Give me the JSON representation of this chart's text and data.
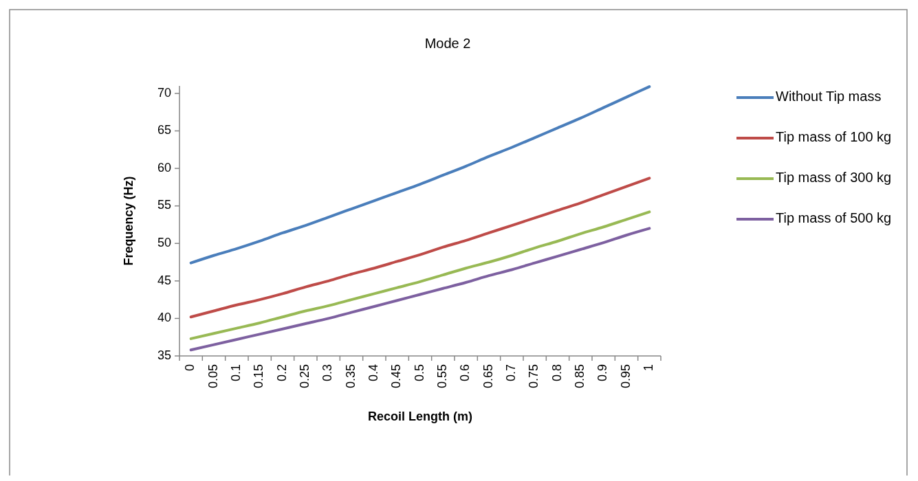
{
  "chart_data": {
    "type": "line",
    "title": "Mode 2",
    "xlabel": "Recoil Length (m)",
    "ylabel": "Frequency (Hz)",
    "categories": [
      "0",
      "0.05",
      "0.1",
      "0.15",
      "0.2",
      "0.25",
      "0.3",
      "0.35",
      "0.4",
      "0.45",
      "0.5",
      "0.55",
      "0.6",
      "0.65",
      "0.7",
      "0.75",
      "0.8",
      "0.85",
      "0.9",
      "0.95",
      "1"
    ],
    "series": [
      {
        "name": "Without Tip mass",
        "color": "#4a7ebb",
        "values": [
          47.4,
          48.4,
          49.3,
          50.3,
          51.4,
          52.4,
          53.5,
          54.6,
          55.7,
          56.8,
          57.9,
          59.1,
          60.3,
          61.6,
          62.8,
          64.1,
          65.4,
          66.7,
          68.1,
          69.5,
          70.9
        ]
      },
      {
        "name": "Tip mass of 100 kg",
        "color": "#be4b48",
        "values": [
          40.2,
          41.0,
          41.8,
          42.5,
          43.3,
          44.2,
          45.0,
          45.9,
          46.7,
          47.6,
          48.5,
          49.5,
          50.4,
          51.4,
          52.4,
          53.4,
          54.4,
          55.4,
          56.5,
          57.6,
          58.7
        ]
      },
      {
        "name": "Tip mass of 300 kg",
        "color": "#98b954",
        "values": [
          37.3,
          38.0,
          38.7,
          39.4,
          40.2,
          41.0,
          41.7,
          42.5,
          43.3,
          44.1,
          44.9,
          45.8,
          46.7,
          47.5,
          48.4,
          49.4,
          50.3,
          51.3,
          52.2,
          53.2,
          54.2
        ]
      },
      {
        "name": "Tip mass of 500 kg",
        "color": "#7d60a0",
        "values": [
          35.8,
          36.5,
          37.2,
          37.9,
          38.6,
          39.3,
          40.0,
          40.8,
          41.6,
          42.4,
          43.2,
          44.0,
          44.8,
          45.7,
          46.5,
          47.4,
          48.3,
          49.2,
          50.1,
          51.1,
          52.0
        ]
      }
    ],
    "ylim": [
      35,
      71
    ],
    "yticks": [
      35,
      40,
      45,
      50,
      55,
      60,
      65,
      70
    ],
    "grid": false,
    "legend": "right",
    "marker": "none",
    "line_style": "solid"
  }
}
